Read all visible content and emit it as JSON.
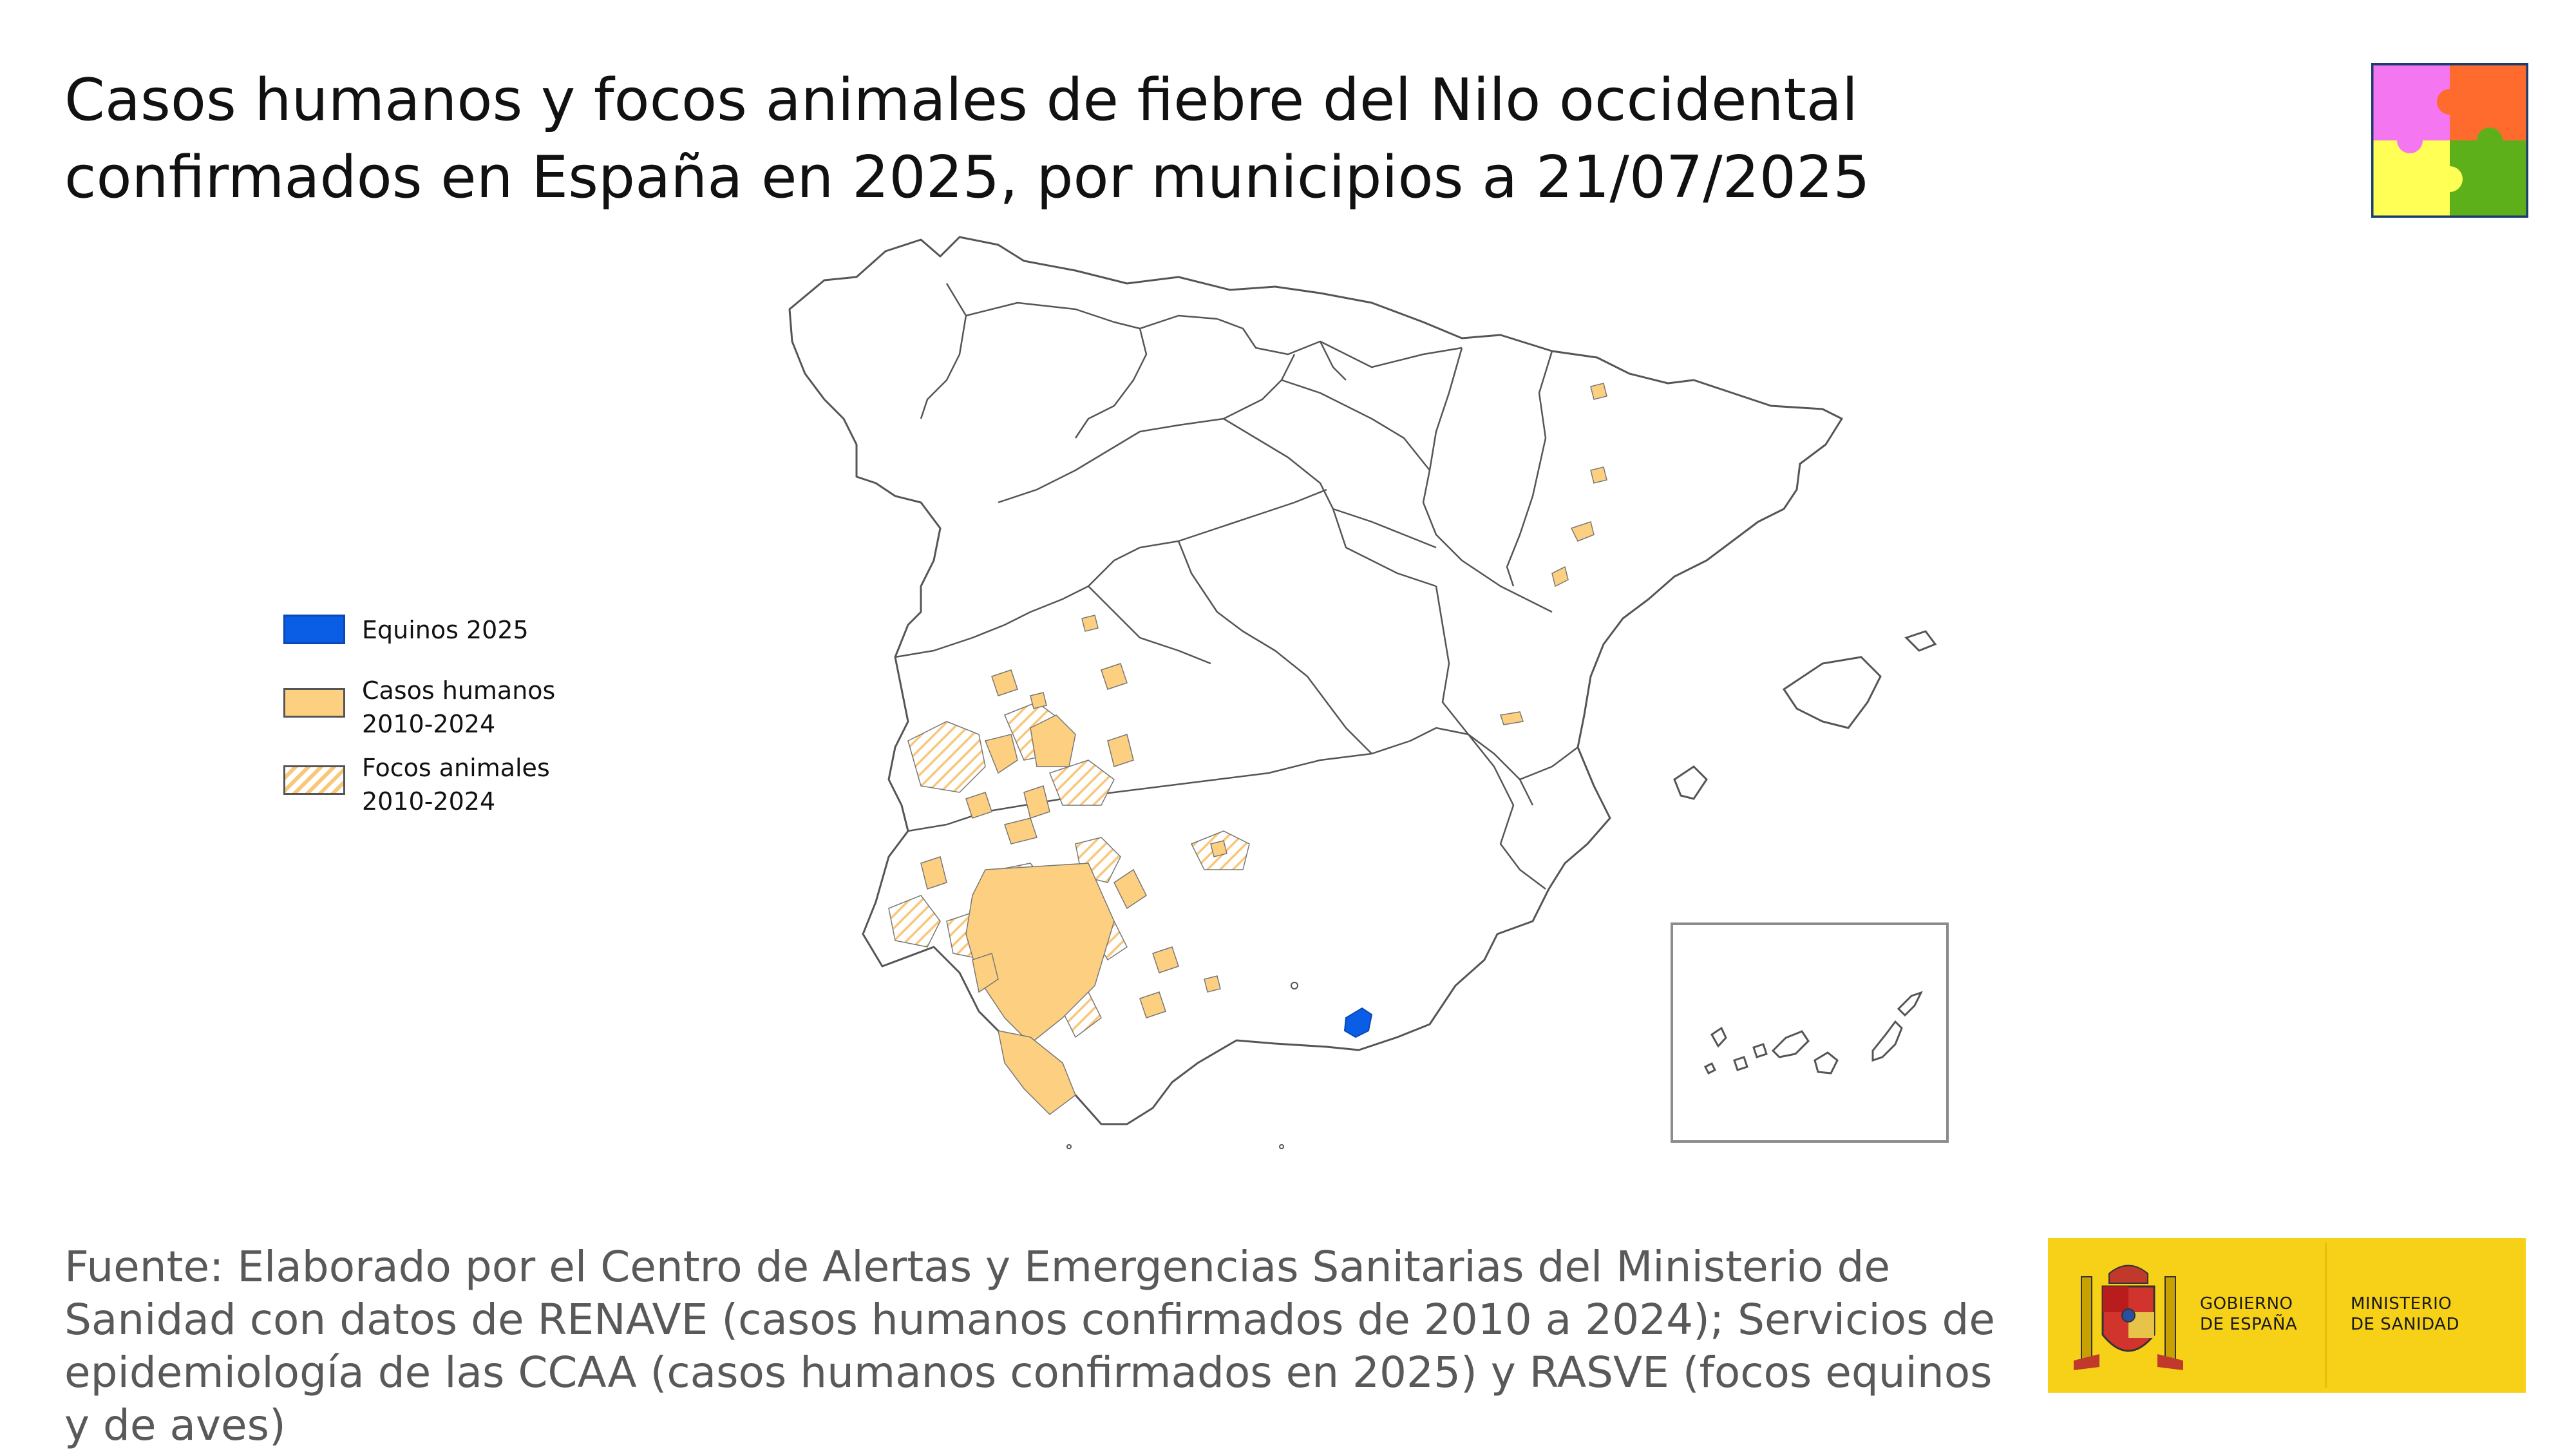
{
  "title": "Casos humanos y focos animales de fiebre del Nilo occidental confirmados en España en 2025, por municipios a 21/07/2025",
  "legend": [
    {
      "label": "Equinos 2025",
      "color": "#0a5ee6",
      "style": "solid"
    },
    {
      "label": "Casos humanos\n2010-2024",
      "color": "#fdd081",
      "style": "solid"
    },
    {
      "label": "Focos animales\n2010-2024",
      "color": "#f8c77a",
      "style": "hatched"
    }
  ],
  "source": "Fuente: Elaborado por el Centro de Alertas y Emergencias Sanitarias del Ministerio de Sanidad con datos de RENAVE (casos humanos confirmados de 2010 a 2024); Servicios de epidemiología de las CCAA (casos humanos confirmados en 2025) y RASVE (focos equinos y de aves)",
  "logo": {
    "left_text": "GOBIERNO\nDE ESPAÑA",
    "right_text": "MINISTERIO\nDE SANIDAD",
    "background": "#f6d117",
    "emblem_icon": "coat-of-arms-icon"
  },
  "puzzle_logo": {
    "icon": "puzzle-pieces-icon",
    "colors": [
      "#f476f0",
      "#ff6a2d",
      "#ffff55",
      "#5eb01b"
    ]
  },
  "colors": {
    "equinos_2025": "#0a5ee6",
    "casos_humanos": "#fdd081",
    "focos_animales": "#f8c77a",
    "outline": "#666666"
  }
}
